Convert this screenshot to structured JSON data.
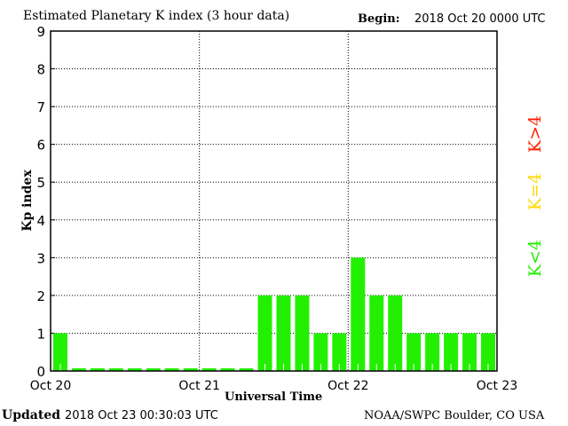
{
  "header": {
    "title": "Estimated Planetary K index (3 hour data)",
    "begin_label": "Begin:",
    "begin_value": "2018 Oct 20 0000 UTC"
  },
  "footer": {
    "updated_label": "Updated",
    "updated_value": "2018 Oct 23 00:30:03 UTC",
    "source": "NOAA/SWPC Boulder, CO USA"
  },
  "legend": {
    "high": "K>4",
    "equal": "K=4",
    "low": "K<4"
  },
  "colors": {
    "low": "#22f000",
    "equal": "#ffd700",
    "high": "#ff2000"
  },
  "chart_data": {
    "type": "bar",
    "title": "Estimated Planetary K index (3 hour data)",
    "xlabel": "Universal Time",
    "ylabel": "Kp index",
    "ylim": [
      0,
      9
    ],
    "yticks": [
      "0",
      "1",
      "2",
      "3",
      "4",
      "5",
      "6",
      "7",
      "8",
      "9"
    ],
    "xticks": [
      "Oct 20",
      "Oct 21",
      "Oct 22",
      "Oct 23"
    ],
    "grid": true,
    "values": [
      1,
      0,
      0,
      0,
      0,
      0,
      0,
      0,
      0,
      0,
      0,
      2,
      2,
      2,
      1,
      1,
      3,
      2,
      2,
      1,
      1,
      1,
      1,
      1
    ]
  }
}
